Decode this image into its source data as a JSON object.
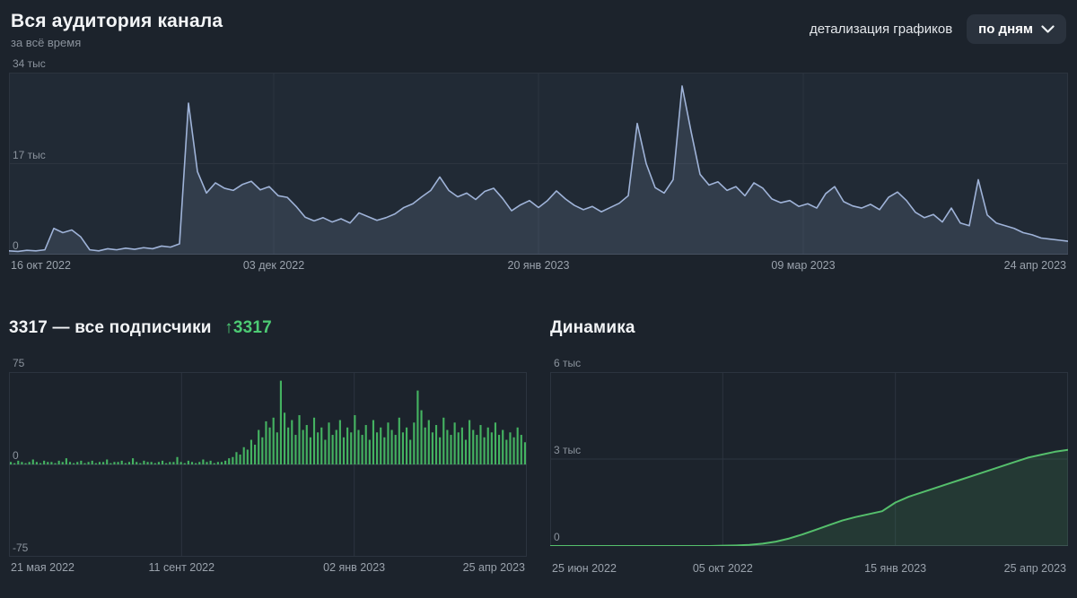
{
  "header": {
    "title": "Вся аудитория канала",
    "subtitle": "за всё время",
    "detail_label": "детализация графиков",
    "granularity": "по дням"
  },
  "colors": {
    "background": "#1c232c",
    "panel": "#212a35",
    "grid": "#2c343f",
    "grid_strong": "#3a434f",
    "axis_text": "#8b939d",
    "line_blue": "#9fb3d8",
    "area_blue": "rgba(159,179,216,0.14)",
    "accent_green": "#4dcb74",
    "bar_green": "#44b261",
    "dyn_green": "#55bf6c",
    "dyn_fill": "rgba(85,191,108,0.14)"
  },
  "chart_data": [
    {
      "type": "area",
      "title": "Вся аудитория канала",
      "subtitle": "за всё время",
      "xlabel": "",
      "ylabel": "",
      "ylim": [
        0,
        34000
      ],
      "y_ticks": [
        "34 тыс",
        "17 тыс",
        "0"
      ],
      "x_ticks": [
        "16 окт 2022",
        "03 дек 2022",
        "20 янв 2023",
        "09 мар 2023",
        "24 апр 2023"
      ],
      "grid": true,
      "legend": false,
      "values": [
        700,
        600,
        800,
        700,
        900,
        4900,
        4100,
        4600,
        3300,
        900,
        700,
        1100,
        900,
        1200,
        1000,
        1300,
        1100,
        1600,
        1400,
        2000,
        28300,
        15500,
        11500,
        13400,
        12400,
        12000,
        13100,
        13700,
        12100,
        12700,
        11000,
        10700,
        9000,
        7000,
        6300,
        6900,
        6100,
        6700,
        5900,
        7800,
        7100,
        6400,
        6900,
        7600,
        8800,
        9500,
        10800,
        12000,
        14500,
        12000,
        10800,
        11500,
        10300,
        11800,
        12400,
        10500,
        8200,
        9300,
        10100,
        8800,
        10100,
        11900,
        10400,
        9200,
        8400,
        9000,
        8000,
        8800,
        9600,
        11000,
        24500,
        17000,
        12500,
        11500,
        14000,
        31500,
        23000,
        15000,
        13000,
        13600,
        12000,
        12700,
        11000,
        13400,
        12400,
        10400,
        9700,
        10100,
        9000,
        9500,
        8700,
        11400,
        12700,
        9900,
        9100,
        8700,
        9400,
        8400,
        10700,
        11700,
        10100,
        7900,
        6900,
        7500,
        6100,
        8700,
        5900,
        5400,
        14000,
        7400,
        5900,
        5400,
        4900,
        4100,
        3700,
        3100,
        2900,
        2700,
        2500
      ]
    },
    {
      "type": "bar",
      "title": "3317 — все подписчики",
      "delta": "↑3317",
      "xlabel": "",
      "ylabel": "",
      "ylim": [
        -75,
        75
      ],
      "y_ticks": [
        "75",
        "0",
        "-75"
      ],
      "x_ticks": [
        "21 мая 2022",
        "11 сент 2022",
        "02 янв 2023",
        "25 апр 2023"
      ],
      "grid": true,
      "legend": false,
      "values": [
        2,
        1,
        3,
        2,
        1,
        2,
        4,
        2,
        1,
        3,
        2,
        2,
        1,
        3,
        2,
        5,
        2,
        1,
        2,
        3,
        1,
        2,
        3,
        1,
        2,
        2,
        4,
        1,
        2,
        2,
        3,
        1,
        2,
        5,
        2,
        1,
        3,
        2,
        2,
        1,
        2,
        3,
        1,
        2,
        2,
        6,
        2,
        1,
        3,
        2,
        1,
        2,
        4,
        2,
        3,
        1,
        2,
        2,
        3,
        5,
        6,
        10,
        8,
        14,
        12,
        20,
        16,
        28,
        22,
        35,
        30,
        38,
        26,
        68,
        42,
        30,
        36,
        24,
        40,
        28,
        32,
        22,
        38,
        26,
        30,
        20,
        34,
        24,
        28,
        36,
        22,
        30,
        26,
        40,
        28,
        24,
        32,
        20,
        36,
        26,
        30,
        22,
        34,
        28,
        24,
        38,
        26,
        30,
        20,
        34,
        60,
        44,
        30,
        36,
        26,
        32,
        22,
        38,
        28,
        24,
        34,
        26,
        30,
        20,
        36,
        28,
        24,
        32,
        22,
        30,
        26,
        34,
        24,
        28,
        20,
        26,
        22,
        30,
        24,
        18
      ]
    },
    {
      "type": "area",
      "title": "Динамика",
      "xlabel": "",
      "ylabel": "",
      "ylim": [
        0,
        6000
      ],
      "y_ticks": [
        "6 тыс",
        "3 тыс",
        "0"
      ],
      "x_ticks": [
        "25 июн 2022",
        "05 окт 2022",
        "15 янв 2023",
        "25 апр 2023"
      ],
      "grid": true,
      "legend": false,
      "values": [
        0,
        0,
        0,
        0,
        0,
        0,
        0,
        0,
        0,
        0,
        0,
        0,
        0,
        10,
        20,
        40,
        80,
        150,
        260,
        400,
        560,
        720,
        880,
        1000,
        1100,
        1200,
        1500,
        1700,
        1850,
        2000,
        2150,
        2300,
        2450,
        2600,
        2750,
        2900,
        3050,
        3150,
        3250,
        3317
      ]
    }
  ]
}
